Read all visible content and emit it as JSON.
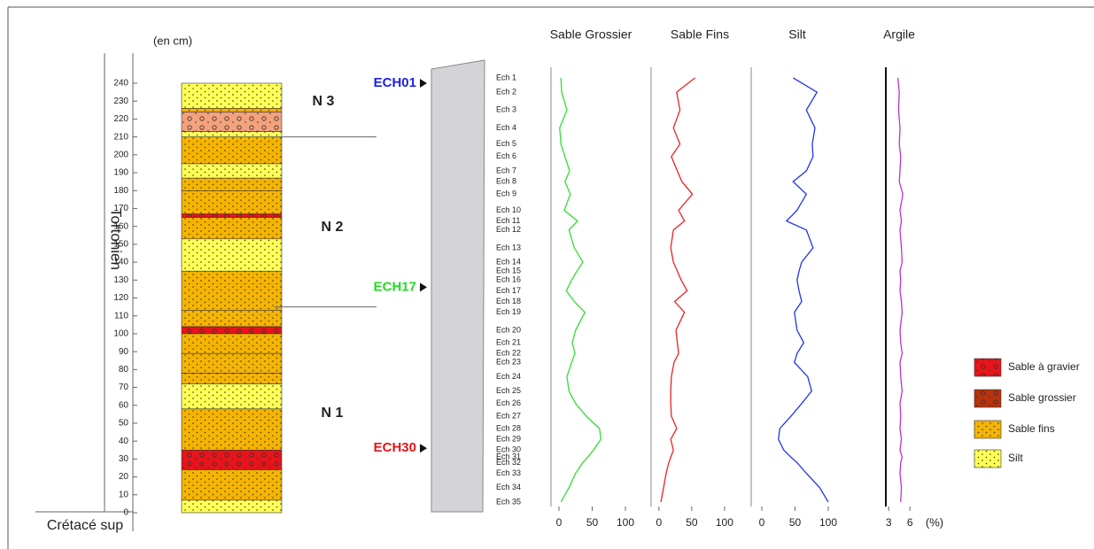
{
  "header": {
    "depth_unit": "(en cm)",
    "stage": "Tortonien",
    "base": "Crétacé sup"
  },
  "depth_axis": {
    "ylim": [
      0,
      240
    ],
    "yticks": [
      0,
      10,
      20,
      30,
      40,
      50,
      60,
      70,
      80,
      90,
      100,
      110,
      120,
      130,
      140,
      150,
      160,
      170,
      180,
      190,
      200,
      210,
      220,
      230,
      240
    ]
  },
  "units": {
    "labels": [
      "N 3",
      "N 2",
      "N 1"
    ],
    "boundaries": [
      210,
      115
    ]
  },
  "legend": [
    {
      "label": "Sable à gravier",
      "color": "#e8141a",
      "pattern": "circles",
      "layers": [
        [
          24,
          35
        ],
        [
          100,
          104
        ],
        [
          165,
          167
        ]
      ]
    },
    {
      "label": "Sable grossier",
      "color": "#b8320c",
      "column_color": "#f4a27c",
      "pattern": "circles",
      "layers": [
        [
          213,
          224
        ]
      ]
    },
    {
      "label": "Sable fins",
      "color": "#f5b400",
      "pattern": "dots",
      "layers": [
        [
          7,
          24
        ],
        [
          35,
          58
        ],
        [
          72,
          78
        ],
        [
          78,
          89
        ],
        [
          89,
          100
        ],
        [
          104,
          113
        ],
        [
          113,
          135
        ],
        [
          153,
          165
        ],
        [
          167,
          180
        ],
        [
          180,
          187
        ],
        [
          195,
          210
        ],
        [
          224,
          226
        ]
      ]
    },
    {
      "label": "Silt",
      "color": "#ffff55",
      "pattern": "dots",
      "layers": [
        [
          0,
          7
        ],
        [
          58,
          72
        ],
        [
          135,
          153
        ],
        [
          187,
          195
        ],
        [
          210,
          213
        ],
        [
          226,
          240
        ]
      ]
    }
  ],
  "markers": [
    {
      "label": "ECH01",
      "color": "#1f1fe6",
      "depth": 240
    },
    {
      "label": "ECH17",
      "color": "#22dd22",
      "depth": 126
    },
    {
      "label": "ECH30",
      "color": "#e8141a",
      "depth": 36
    }
  ],
  "samples": {
    "labels": [
      "Ech 1",
      "Ech 2",
      "Ech 3",
      "Ech 4",
      "Ech 5",
      "Ech 6",
      "Ech 7",
      "Ech 8",
      "Ech 9",
      "Ech 10",
      "Ech 11",
      "Ech 12",
      "Ech 13",
      "Ech 14",
      "Ech 15",
      "Ech 16",
      "Ech 17",
      "Ech 18",
      "Ech 19",
      "Ech 20",
      "Ech 21",
      "Ech 22",
      "Ech 23",
      "Ech 24",
      "Ech 25",
      "Ech 26",
      "Ech 27",
      "Ech 28",
      "Ech 29",
      "Ech 30",
      "Ech 31",
      "Ech 32",
      "Ech 33",
      "Ech 34",
      "Ech 35"
    ],
    "depths": [
      243,
      235,
      225,
      215,
      206,
      199,
      191,
      185,
      178,
      169,
      163,
      158,
      148,
      140,
      135,
      130,
      124,
      118,
      112,
      102,
      95,
      89,
      84,
      76,
      68,
      61,
      54,
      47,
      41,
      35,
      31,
      28,
      22,
      14,
      6
    ]
  },
  "chart_data": [
    {
      "type": "line",
      "title": "Sable Grossier",
      "color": "#33dd33",
      "xlim": [
        -12,
        110
      ],
      "xticks": [
        0,
        50,
        100
      ],
      "values": [
        3,
        4,
        12,
        1,
        3,
        9,
        16,
        9,
        17,
        8,
        28,
        15,
        23,
        36,
        27,
        19,
        11,
        23,
        39,
        25,
        20,
        24,
        19,
        12,
        15,
        25,
        41,
        61,
        63,
        52,
        43,
        36,
        25,
        15,
        3
      ]
    },
    {
      "type": "line",
      "title": "Sable Fins",
      "color": "#ee2222",
      "xlim": [
        -12,
        110
      ],
      "xticks": [
        0,
        50,
        100
      ],
      "values": [
        55,
        27,
        32,
        22,
        32,
        19,
        28,
        35,
        51,
        30,
        39,
        22,
        18,
        22,
        28,
        34,
        43,
        24,
        39,
        26,
        28,
        30,
        23,
        19,
        18,
        18,
        19,
        27,
        18,
        22,
        18,
        15,
        11,
        7,
        3
      ]
    },
    {
      "type": "line",
      "title": "Silt",
      "color": "#2233ee",
      "xlim": [
        -16,
        110
      ],
      "xticks": [
        0,
        50,
        100
      ],
      "values": [
        47,
        83,
        67,
        80,
        76,
        77,
        67,
        47,
        67,
        53,
        37,
        67,
        77,
        60,
        56,
        53,
        56,
        60,
        49,
        53,
        63,
        53,
        49,
        69,
        75,
        60,
        44,
        27,
        25,
        33,
        44,
        53,
        67,
        87,
        100
      ]
    },
    {
      "type": "line",
      "title": "Argile",
      "color": "#bb33cc",
      "xlim": [
        2.6,
        7.5
      ],
      "xticks": [
        3,
        6
      ],
      "x_unit": "(%)",
      "values": [
        4.3,
        4.5,
        4.4,
        4.6,
        4.5,
        4.7,
        4.6,
        4.5,
        5.0,
        4.6,
        4.8,
        4.6,
        4.8,
        4.9,
        4.6,
        4.7,
        4.6,
        4.8,
        4.9,
        4.6,
        4.7,
        4.9,
        4.6,
        4.7,
        4.9,
        4.6,
        4.7,
        4.6,
        4.8,
        4.6,
        4.9,
        4.7,
        4.6,
        4.8,
        4.7
      ]
    }
  ]
}
